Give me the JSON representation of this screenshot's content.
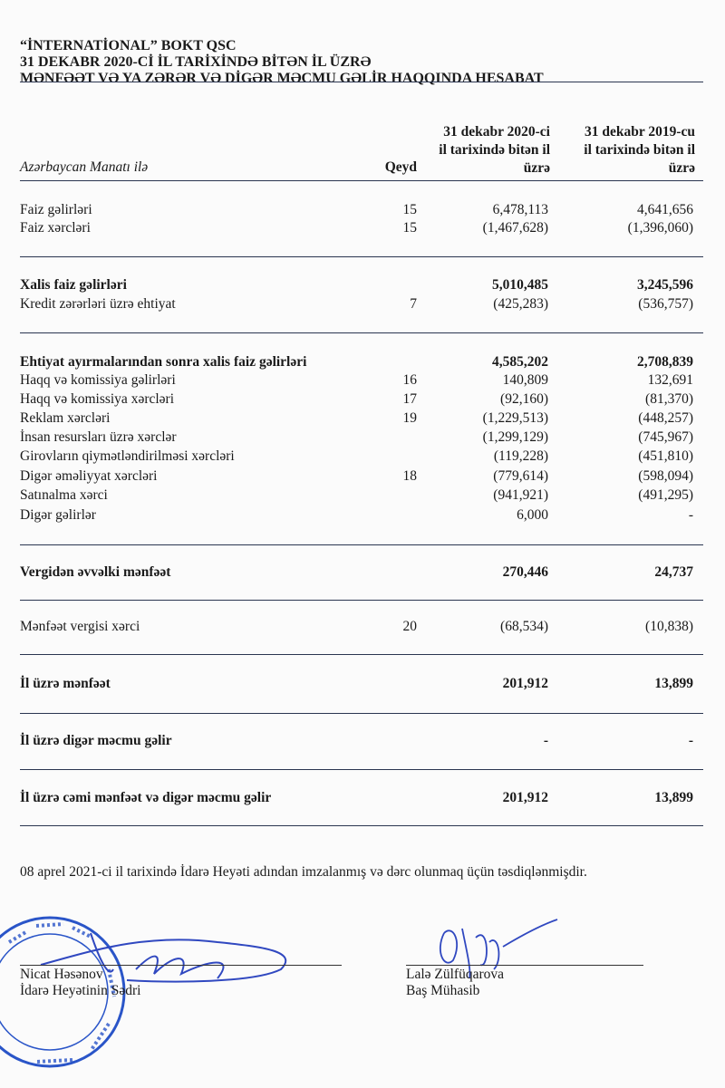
{
  "header": {
    "company": "“İNTERNATİONAL” BOKT QSC",
    "line2": "31 DEKABR 2020-Cİ İL TARİXİNDƏ BİTƏN İL ÜZRƏ",
    "line3": "MƏNFƏƏT VƏ YA ZƏRƏR VƏ DİGƏR MƏCMU GƏLİR HAQQINDA HESABAT"
  },
  "table_header": {
    "currency": "Azərbaycan Manatı ilə",
    "note": "Qeyd",
    "col1": [
      "31 dekabr 2020-ci",
      "il tarixində bitən il",
      "üzrə"
    ],
    "col2": [
      "31 dekabr 2019-cu",
      "il tarixində bitən il",
      "üzrə"
    ]
  },
  "rows": [
    {
      "label": "Faiz gəlirləri",
      "note": "15",
      "v2020": "6,478,113",
      "v2019": "4,641,656",
      "bold": false
    },
    {
      "label": "Faiz xərcləri",
      "note": "15",
      "v2020": "(1,467,628)",
      "v2019": "(1,396,060)",
      "bold": false
    },
    {
      "label": "Xalis faiz gəlirləri",
      "note": "",
      "v2020": "5,010,485",
      "v2019": "3,245,596",
      "bold": true
    },
    {
      "label": "Kredit zərərləri üzrə ehtiyat",
      "note": "7",
      "v2020": "(425,283)",
      "v2019": "(536,757)",
      "bold": false
    },
    {
      "label": "Ehtiyat ayırmalarından sonra xalis faiz gəlirləri",
      "note": "",
      "v2020": "4,585,202",
      "v2019": "2,708,839",
      "bold": true
    },
    {
      "label": "Haqq və komissiya gəlirləri",
      "note": "16",
      "v2020": "140,809",
      "v2019": "132,691",
      "bold": false
    },
    {
      "label": "Haqq və komissiya xərcləri",
      "note": "17",
      "v2020": "(92,160)",
      "v2019": "(81,370)",
      "bold": false
    },
    {
      "label": "Reklam xərcləri",
      "note": "19",
      "v2020": "(1,229,513)",
      "v2019": "(448,257)",
      "bold": false
    },
    {
      "label": "İnsan resursları üzrə xərclər",
      "note": "",
      "v2020": "(1,299,129)",
      "v2019": "(745,967)",
      "bold": false
    },
    {
      "label": "Girovların qiymətləndirilməsi xərcləri",
      "note": "",
      "v2020": "(119,228)",
      "v2019": "(451,810)",
      "bold": false
    },
    {
      "label": "Digər əməliyyat xərcləri",
      "note": "18",
      "v2020": "(779,614)",
      "v2019": "(598,094)",
      "bold": false
    },
    {
      "label": "Satınalma xərci",
      "note": "",
      "v2020": "(941,921)",
      "v2019": "(491,295)",
      "bold": false
    },
    {
      "label": "Digər gəlirlər",
      "note": "",
      "v2020": "6,000",
      "v2019": "-",
      "bold": false
    },
    {
      "label": "Vergidən əvvəlki mənfəət",
      "note": "",
      "v2020": "270,446",
      "v2019": "24,737",
      "bold": true
    },
    {
      "label": "Mənfəət vergisi xərci",
      "note": "20",
      "v2020": "(68,534)",
      "v2019": "(10,838)",
      "bold": false
    },
    {
      "label": "İl üzrə mənfəət",
      "note": "",
      "v2020": "201,912",
      "v2019": "13,899",
      "bold": true
    },
    {
      "label": "İl üzrə digər məcmu gəlir",
      "note": "",
      "v2020": "-",
      "v2019": "-",
      "bold": true
    },
    {
      "label": "İl üzrə cəmi mənfəət və digər məcmu gəlir",
      "note": "",
      "v2020": "201,912",
      "v2019": "13,899",
      "bold": true
    }
  ],
  "approval_text": "08 aprel 2021-ci il tarixində İdarə Heyəti adından imzalanmış və dərc olunmaq üçün təsdiqlənmişdir.",
  "signatories": [
    {
      "name": "Nicat Həsənov",
      "title": "İdarə Heyətinin Sədri"
    },
    {
      "name": "Lalə Zülfüqarova",
      "title": "Baş Mühasib"
    }
  ],
  "stamp": {
    "text": "BANK OLMAYAN KREDİT TƏŞKİLATI \"İNTERNATİONAL\" SƏHMDAR CƏMİYYƏTİ",
    "color": "#2a55c8"
  },
  "ink_color": "#3048c0"
}
